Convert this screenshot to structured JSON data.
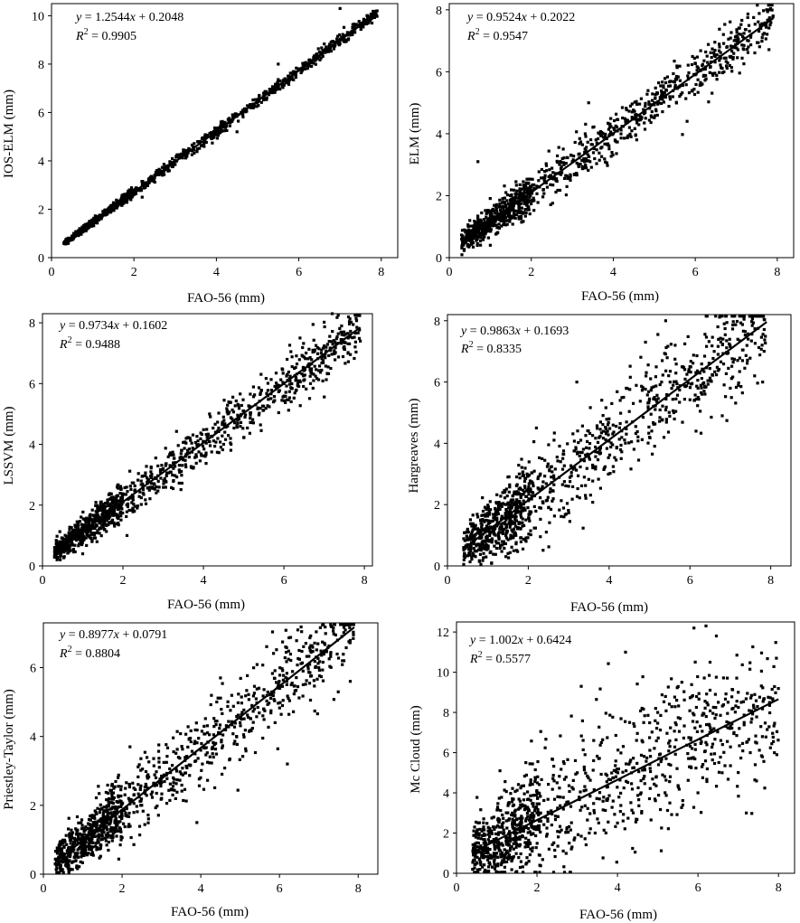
{
  "figure": {
    "panels": [
      {
        "id": "ios-elm",
        "ylabel": "IOS-ELM (mm)",
        "xlabel": "FAO-56 (mm)",
        "equation": {
          "y": "y",
          "rhs_prefix": " = 1.2544",
          "x": "x",
          "rhs_suffix": " + 0.2048",
          "r2_label": "R",
          "r2_value": " = 0.9905"
        }
      },
      {
        "id": "elm",
        "ylabel": "ELM (mm)",
        "xlabel": "FAO-56 (mm)",
        "equation": {
          "y": "y",
          "rhs_prefix": " = 0.9524",
          "x": "x",
          "rhs_suffix": " + 0.2022",
          "r2_label": "R",
          "r2_value": " = 0.9547"
        }
      },
      {
        "id": "lssvm",
        "ylabel": "LSSVM (mm)",
        "xlabel": "FAO-56 (mm)",
        "equation": {
          "y": "y",
          "rhs_prefix": " = 0.9734",
          "x": "x",
          "rhs_suffix": " + 0.1602",
          "r2_label": "R",
          "r2_value": " = 0.9488"
        }
      },
      {
        "id": "hargreaves",
        "ylabel": "Hargreaves (mm)",
        "xlabel": "FAO-56 (mm)",
        "equation": {
          "y": "y",
          "rhs_prefix": " = 0.9863",
          "x": "x",
          "rhs_suffix": " + 0.1693",
          "r2_label": "R",
          "r2_value": " = 0.8335"
        }
      },
      {
        "id": "priestley-taylor",
        "ylabel": "Priestley-Taylor (mm)",
        "xlabel": "FAO-56 (mm)",
        "equation": {
          "y": "y",
          "rhs_prefix": " = 0.8977",
          "x": "x",
          "rhs_suffix": " + 0.0791",
          "r2_label": "R",
          "r2_value": " = 0.8804"
        }
      },
      {
        "id": "mc-cloud",
        "ylabel": "Mc Cloud (mm)",
        "xlabel": "FAO-56 (mm)",
        "equation": {
          "y": "y",
          "rhs_prefix": " = 1.002",
          "x": "x",
          "rhs_suffix": " + 0.6424",
          "r2_label": "R",
          "r2_value": " = 0.5577"
        }
      }
    ]
  },
  "chart_data": [
    {
      "type": "scatter",
      "xlabel": "FAO-56 (mm)",
      "ylabel": "IOS-ELM (mm)",
      "xlim": [
        0,
        8.4
      ],
      "ylim": [
        0,
        10.5
      ],
      "xticks": [
        0,
        2,
        4,
        6,
        8
      ],
      "yticks": [
        0,
        2,
        4,
        6,
        8,
        10
      ],
      "tick_labels_x": [
        "0",
        "2",
        "4",
        "6",
        "8"
      ],
      "tick_labels_y": [
        "0",
        "2",
        "4",
        "6",
        "8",
        "10"
      ],
      "fit": {
        "slope": 1.2544,
        "intercept": 0.2048,
        "r2": 0.9905,
        "x_range": [
          0.3,
          7.9
        ]
      },
      "points_summary": {
        "n_approx": 1100,
        "x_range": [
          0.3,
          7.9
        ],
        "spread_sd": 0.12,
        "note": "points follow y = 1.2544x + 0.2048"
      },
      "points": [
        [
          0.3,
          0.6
        ],
        [
          0.5,
          0.8
        ],
        [
          0.8,
          1.2
        ],
        [
          1.0,
          1.5
        ],
        [
          1.2,
          1.7
        ],
        [
          1.5,
          2.1
        ],
        [
          1.8,
          2.5
        ],
        [
          2.0,
          2.7
        ],
        [
          2.3,
          3.1
        ],
        [
          2.5,
          3.4
        ],
        [
          2.8,
          3.7
        ],
        [
          3.0,
          4.0
        ],
        [
          3.3,
          4.4
        ],
        [
          3.6,
          4.8
        ],
        [
          4.0,
          5.2
        ],
        [
          4.3,
          5.6
        ],
        [
          4.6,
          6.0
        ],
        [
          5.0,
          6.5
        ],
        [
          5.3,
          6.9
        ],
        [
          5.6,
          7.2
        ],
        [
          6.0,
          7.8
        ],
        [
          6.3,
          8.1
        ],
        [
          6.6,
          8.5
        ],
        [
          7.0,
          9.0
        ],
        [
          7.3,
          9.3
        ],
        [
          7.6,
          9.7
        ],
        [
          7.9,
          10.2
        ],
        [
          5.5,
          8.0
        ],
        [
          4.5,
          5.2
        ],
        [
          2.2,
          2.5
        ],
        [
          6.5,
          8.5
        ],
        [
          7.0,
          10.3
        ]
      ]
    },
    {
      "type": "scatter",
      "xlabel": "FAO-56 (mm)",
      "ylabel": "ELM (mm)",
      "xlim": [
        0,
        8.4
      ],
      "ylim": [
        0,
        8.2
      ],
      "xticks": [
        0,
        2,
        4,
        6,
        8
      ],
      "yticks": [
        0,
        2,
        4,
        6,
        8
      ],
      "tick_labels_x": [
        "0",
        "2",
        "4",
        "6",
        "8"
      ],
      "tick_labels_y": [
        "0",
        "2",
        "4",
        "6",
        "8"
      ],
      "fit": {
        "slope": 0.9524,
        "intercept": 0.2022,
        "r2": 0.9547,
        "x_range": [
          0.3,
          7.9
        ]
      },
      "points_summary": {
        "n_approx": 1100,
        "x_range": [
          0.3,
          7.9
        ],
        "spread_sd": 0.4,
        "note": "points follow y = 0.9524x + 0.2022"
      },
      "points": [
        [
          0.3,
          0.6
        ],
        [
          0.5,
          1.2
        ],
        [
          0.8,
          1.0
        ],
        [
          1.0,
          1.4
        ],
        [
          1.2,
          1.3
        ],
        [
          1.5,
          1.7
        ],
        [
          1.8,
          1.9
        ],
        [
          2.0,
          2.3
        ],
        [
          2.3,
          2.2
        ],
        [
          2.5,
          2.6
        ],
        [
          2.8,
          3.0
        ],
        [
          3.0,
          3.1
        ],
        [
          3.3,
          3.4
        ],
        [
          3.6,
          3.7
        ],
        [
          4.0,
          4.0
        ],
        [
          4.3,
          4.4
        ],
        [
          4.6,
          4.6
        ],
        [
          5.0,
          5.0
        ],
        [
          5.3,
          5.4
        ],
        [
          5.6,
          5.5
        ],
        [
          6.0,
          5.9
        ],
        [
          6.3,
          6.3
        ],
        [
          6.6,
          6.5
        ],
        [
          7.0,
          7.0
        ],
        [
          7.3,
          7.0
        ],
        [
          7.6,
          7.4
        ],
        [
          7.9,
          7.8
        ],
        [
          0.7,
          3.1
        ],
        [
          3.4,
          5.0
        ],
        [
          5.8,
          4.4
        ],
        [
          7.8,
          8.0
        ],
        [
          1.0,
          0.4
        ]
      ]
    },
    {
      "type": "scatter",
      "xlabel": "FAO-56 (mm)",
      "ylabel": "LSSVM (mm)",
      "xlim": [
        0,
        8.2
      ],
      "ylim": [
        0,
        8.3
      ],
      "xticks": [
        0,
        2,
        4,
        6,
        8
      ],
      "yticks": [
        0,
        2,
        4,
        6,
        8
      ],
      "tick_labels_x": [
        "0",
        "2",
        "4",
        "6",
        "8"
      ],
      "tick_labels_y": [
        "0",
        "2",
        "4",
        "6",
        "8"
      ],
      "fit": {
        "slope": 0.9734,
        "intercept": 0.1602,
        "r2": 0.9488,
        "x_range": [
          0.3,
          7.9
        ]
      },
      "points_summary": {
        "n_approx": 1100,
        "x_range": [
          0.3,
          7.9
        ],
        "spread_sd": 0.42,
        "note": "points follow y = 0.9734x + 0.1602"
      },
      "points": [
        [
          0.3,
          0.6
        ],
        [
          0.5,
          0.9
        ],
        [
          0.8,
          1.1
        ],
        [
          1.0,
          1.3
        ],
        [
          1.2,
          1.2
        ],
        [
          1.5,
          1.7
        ],
        [
          1.8,
          2.0
        ],
        [
          2.0,
          2.1
        ],
        [
          2.3,
          2.5
        ],
        [
          2.5,
          2.6
        ],
        [
          2.8,
          2.9
        ],
        [
          3.0,
          3.2
        ],
        [
          3.3,
          3.4
        ],
        [
          3.6,
          3.7
        ],
        [
          4.0,
          4.1
        ],
        [
          4.3,
          4.4
        ],
        [
          4.6,
          4.6
        ],
        [
          5.0,
          5.1
        ],
        [
          5.3,
          5.3
        ],
        [
          5.6,
          5.6
        ],
        [
          6.0,
          6.0
        ],
        [
          6.3,
          6.2
        ],
        [
          6.6,
          6.6
        ],
        [
          7.0,
          6.9
        ],
        [
          7.3,
          7.3
        ],
        [
          7.6,
          7.5
        ],
        [
          7.9,
          7.4
        ],
        [
          7.2,
          8.3
        ],
        [
          2.1,
          1.0
        ],
        [
          6.4,
          7.5
        ],
        [
          4.5,
          4.9
        ],
        [
          1.0,
          0.4
        ]
      ]
    },
    {
      "type": "scatter",
      "xlabel": "FAO-56 (mm)",
      "ylabel": "Hargreaves (mm)",
      "xlim": [
        0,
        8.5
      ],
      "ylim": [
        0,
        8.2
      ],
      "xticks": [
        0,
        2,
        4,
        6,
        8
      ],
      "yticks": [
        0,
        2,
        4,
        6,
        8
      ],
      "tick_labels_x": [
        "0",
        "2",
        "4",
        "6",
        "8"
      ],
      "tick_labels_y": [
        "0",
        "2",
        "4",
        "6",
        "8"
      ],
      "fit": {
        "slope": 0.9863,
        "intercept": 0.1693,
        "r2": 0.8335,
        "x_range": [
          0.4,
          7.9
        ]
      },
      "points_summary": {
        "n_approx": 1100,
        "x_range": [
          0.4,
          7.9
        ],
        "spread_sd": 0.85,
        "note": "points follow y = 0.9863x + 0.1693"
      },
      "points": [
        [
          0.4,
          0.6
        ],
        [
          0.6,
          0.3
        ],
        [
          0.8,
          0.9
        ],
        [
          1.0,
          1.2
        ],
        [
          1.2,
          0.8
        ],
        [
          1.5,
          2.0
        ],
        [
          1.8,
          1.4
        ],
        [
          2.0,
          2.5
        ],
        [
          2.3,
          3.0
        ],
        [
          2.5,
          1.9
        ],
        [
          2.8,
          3.4
        ],
        [
          3.0,
          2.6
        ],
        [
          3.3,
          4.1
        ],
        [
          3.6,
          3.2
        ],
        [
          4.0,
          4.8
        ],
        [
          4.3,
          3.5
        ],
        [
          4.6,
          5.3
        ],
        [
          5.0,
          4.2
        ],
        [
          5.3,
          6.0
        ],
        [
          5.6,
          5.0
        ],
        [
          6.0,
          6.5
        ],
        [
          6.3,
          5.6
        ],
        [
          6.6,
          7.0
        ],
        [
          7.0,
          5.8
        ],
        [
          7.3,
          6.7
        ],
        [
          7.6,
          6.2
        ],
        [
          7.8,
          6.0
        ],
        [
          5.4,
          8.0
        ],
        [
          3.2,
          6.0
        ],
        [
          4.9,
          7.3
        ],
        [
          2.2,
          4.5
        ],
        [
          6.8,
          4.9
        ]
      ]
    },
    {
      "type": "scatter",
      "xlabel": "FAO-56 (mm)",
      "ylabel": "Priestley-Taylor (mm)",
      "xlim": [
        0,
        8.5
      ],
      "ylim": [
        0,
        7.3
      ],
      "xticks": [
        0,
        2,
        4,
        6,
        8
      ],
      "yticks": [
        0,
        2,
        4,
        6
      ],
      "tick_labels_x": [
        "0",
        "2",
        "4",
        "6",
        "8"
      ],
      "tick_labels_y": [
        "0",
        "2",
        "4",
        "6"
      ],
      "fit": {
        "slope": 0.8977,
        "intercept": 0.0791,
        "r2": 0.8804,
        "x_range": [
          0.3,
          7.9
        ]
      },
      "points_summary": {
        "n_approx": 1100,
        "x_range": [
          0.3,
          7.9
        ],
        "spread_sd": 0.6,
        "note": "points follow y = 0.8977x + 0.0791"
      },
      "points": [
        [
          0.3,
          0.3
        ],
        [
          0.5,
          0.6
        ],
        [
          0.8,
          0.5
        ],
        [
          1.0,
          1.0
        ],
        [
          1.2,
          1.2
        ],
        [
          1.5,
          1.1
        ],
        [
          1.8,
          1.8
        ],
        [
          2.0,
          1.7
        ],
        [
          2.3,
          2.3
        ],
        [
          2.5,
          2.0
        ],
        [
          2.8,
          2.6
        ],
        [
          3.0,
          2.8
        ],
        [
          3.3,
          2.8
        ],
        [
          3.6,
          3.3
        ],
        [
          4.0,
          3.6
        ],
        [
          4.3,
          3.5
        ],
        [
          4.6,
          4.2
        ],
        [
          5.0,
          4.4
        ],
        [
          5.3,
          4.9
        ],
        [
          5.6,
          4.8
        ],
        [
          6.0,
          5.4
        ],
        [
          6.3,
          5.5
        ],
        [
          6.6,
          5.9
        ],
        [
          7.0,
          6.0
        ],
        [
          7.3,
          6.4
        ],
        [
          7.6,
          6.2
        ],
        [
          7.8,
          5.6
        ],
        [
          6.5,
          6.5
        ],
        [
          3.9,
          1.5
        ],
        [
          4.5,
          5.7
        ],
        [
          2.2,
          3.7
        ],
        [
          6.2,
          3.2
        ]
      ]
    },
    {
      "type": "scatter",
      "xlabel": "FAO-56 (mm)",
      "ylabel": "Mc Cloud (mm)",
      "xlim": [
        0,
        8.4
      ],
      "ylim": [
        0,
        12.5
      ],
      "xticks": [
        0,
        2,
        4,
        6,
        8
      ],
      "yticks": [
        0,
        2,
        4,
        6,
        8,
        10,
        12
      ],
      "tick_labels_x": [
        "0",
        "2",
        "4",
        "6",
        "8"
      ],
      "tick_labels_y": [
        "0",
        "2",
        "4",
        "6",
        "8",
        "10",
        "12"
      ],
      "fit": {
        "slope": 1.002,
        "intercept": 0.6424,
        "r2": 0.5577,
        "x_range": [
          0.4,
          8.0
        ]
      },
      "points_summary": {
        "n_approx": 1100,
        "x_range": [
          0.4,
          8.0
        ],
        "spread_sd": 1.7,
        "note": "points follow y = 1.002x + 0.6424"
      },
      "points": [
        [
          0.4,
          0.2
        ],
        [
          0.6,
          0.5
        ],
        [
          0.8,
          0.1
        ],
        [
          1.0,
          1.0
        ],
        [
          1.2,
          0.3
        ],
        [
          1.5,
          2.0
        ],
        [
          1.8,
          0.6
        ],
        [
          2.0,
          3.0
        ],
        [
          2.3,
          1.2
        ],
        [
          2.5,
          4.5
        ],
        [
          2.8,
          1.5
        ],
        [
          3.0,
          5.0
        ],
        [
          3.3,
          2.0
        ],
        [
          3.6,
          6.5
        ],
        [
          4.0,
          2.5
        ],
        [
          4.3,
          7.5
        ],
        [
          4.6,
          3.0
        ],
        [
          5.0,
          8.0
        ],
        [
          5.3,
          3.5
        ],
        [
          5.6,
          9.5
        ],
        [
          6.0,
          4.0
        ],
        [
          6.3,
          10.5
        ],
        [
          6.6,
          5.0
        ],
        [
          7.0,
          9.0
        ],
        [
          7.3,
          6.0
        ],
        [
          7.6,
          6.8
        ],
        [
          7.9,
          6.0
        ],
        [
          6.2,
          12.3
        ],
        [
          4.2,
          11.0
        ],
        [
          3.1,
          9.3
        ],
        [
          5.9,
          12.2
        ],
        [
          7.2,
          3.0
        ]
      ]
    }
  ]
}
